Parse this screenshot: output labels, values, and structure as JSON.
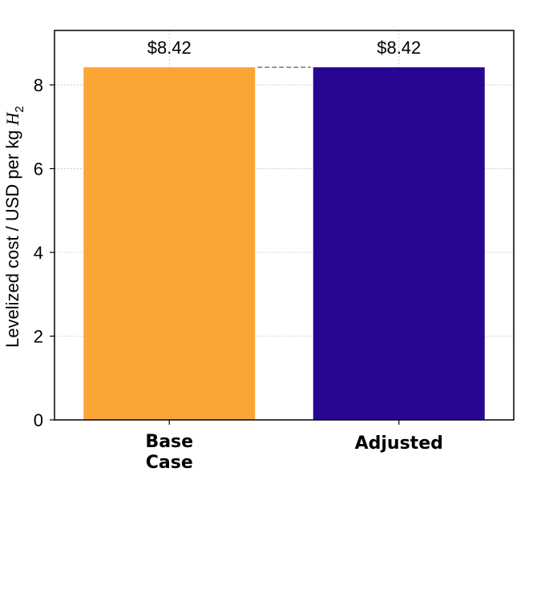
{
  "chart_data": {
    "type": "bar",
    "categories": [
      [
        "Base",
        "Case"
      ],
      [
        "Adjusted"
      ]
    ],
    "values": [
      8.42,
      8.42
    ],
    "value_labels": [
      "$8.42",
      "$8.42"
    ],
    "colors": [
      "#fca537",
      "#2a0592"
    ],
    "ylabel_prefix": "Levelized cost / USD per kg ",
    "ylabel_h": "H",
    "ylabel_sub": "2",
    "ylim": [
      0,
      9.3
    ],
    "yticks": [
      0,
      2,
      4,
      6,
      8
    ],
    "grid": true,
    "connector_line": true
  }
}
